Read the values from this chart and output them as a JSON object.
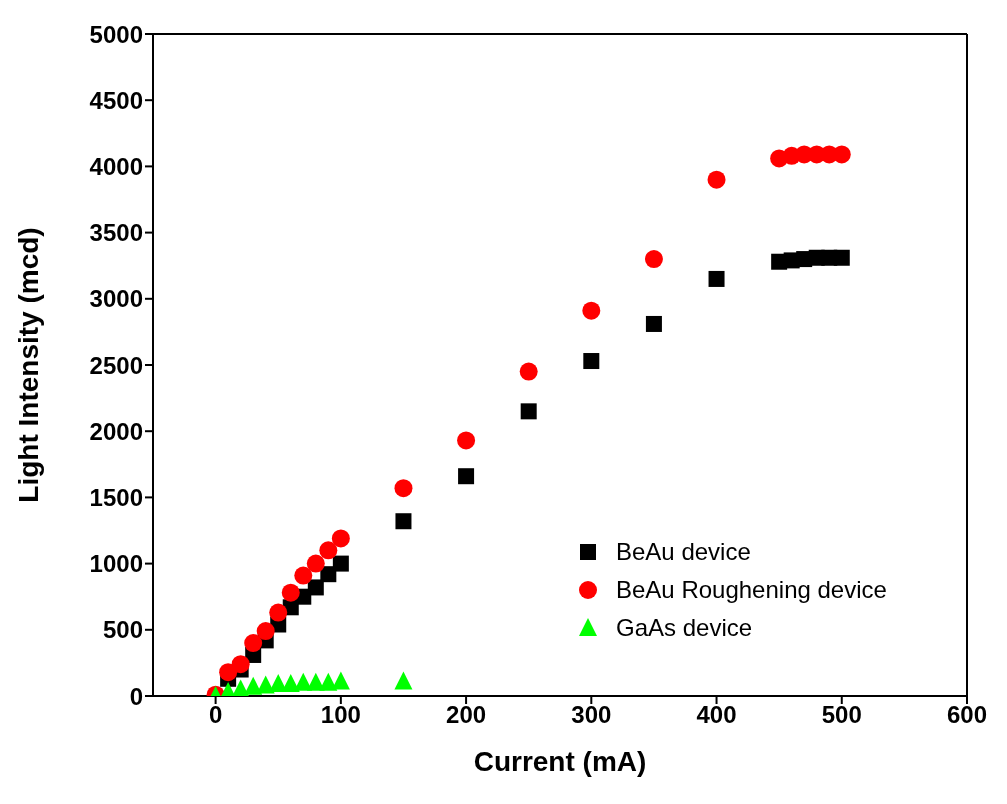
{
  "chart_data": {
    "type": "scatter",
    "xlabel": "Current (mA)",
    "ylabel": "Light Intensity (mcd)",
    "xlim": [
      -50,
      600
    ],
    "xticks": [
      0,
      100,
      200,
      300,
      400,
      500,
      600
    ],
    "ylim": [
      0,
      5000
    ],
    "yticks": [
      0,
      500,
      1000,
      1500,
      2000,
      2500,
      3000,
      3500,
      4000,
      4500,
      5000
    ],
    "grid": false,
    "legend": "bottom right",
    "x": [
      0,
      10,
      20,
      30,
      40,
      50,
      60,
      70,
      80,
      90,
      100,
      150,
      200,
      250,
      300,
      350,
      400,
      450,
      460,
      470,
      480,
      490,
      500
    ],
    "series": [
      {
        "name": "BeAu device",
        "color": "#000000",
        "marker": "square",
        "values": [
          null,
          130,
          200,
          310,
          420,
          540,
          670,
          750,
          820,
          920,
          1000,
          1320,
          1660,
          2150,
          2530,
          2810,
          3150,
          3280,
          3290,
          3300,
          3310,
          3310,
          3310
        ]
      },
      {
        "name": "BeAu Roughening device",
        "color": "#ff0000",
        "marker": "circle",
        "values": [
          10,
          180,
          240,
          400,
          490,
          630,
          780,
          910,
          1000,
          1100,
          1190,
          1570,
          1930,
          2450,
          2910,
          3300,
          3900,
          4060,
          4080,
          4090,
          4090,
          4090,
          4090
        ]
      },
      {
        "name": "GaAs device",
        "color": "#00ff00",
        "marker": "triangle",
        "x": [
          0,
          10,
          20,
          30,
          40,
          50,
          60,
          70,
          80,
          90,
          100,
          150
        ],
        "values": [
          0,
          30,
          50,
          70,
          80,
          90,
          90,
          100,
          100,
          100,
          110,
          110
        ]
      }
    ]
  }
}
